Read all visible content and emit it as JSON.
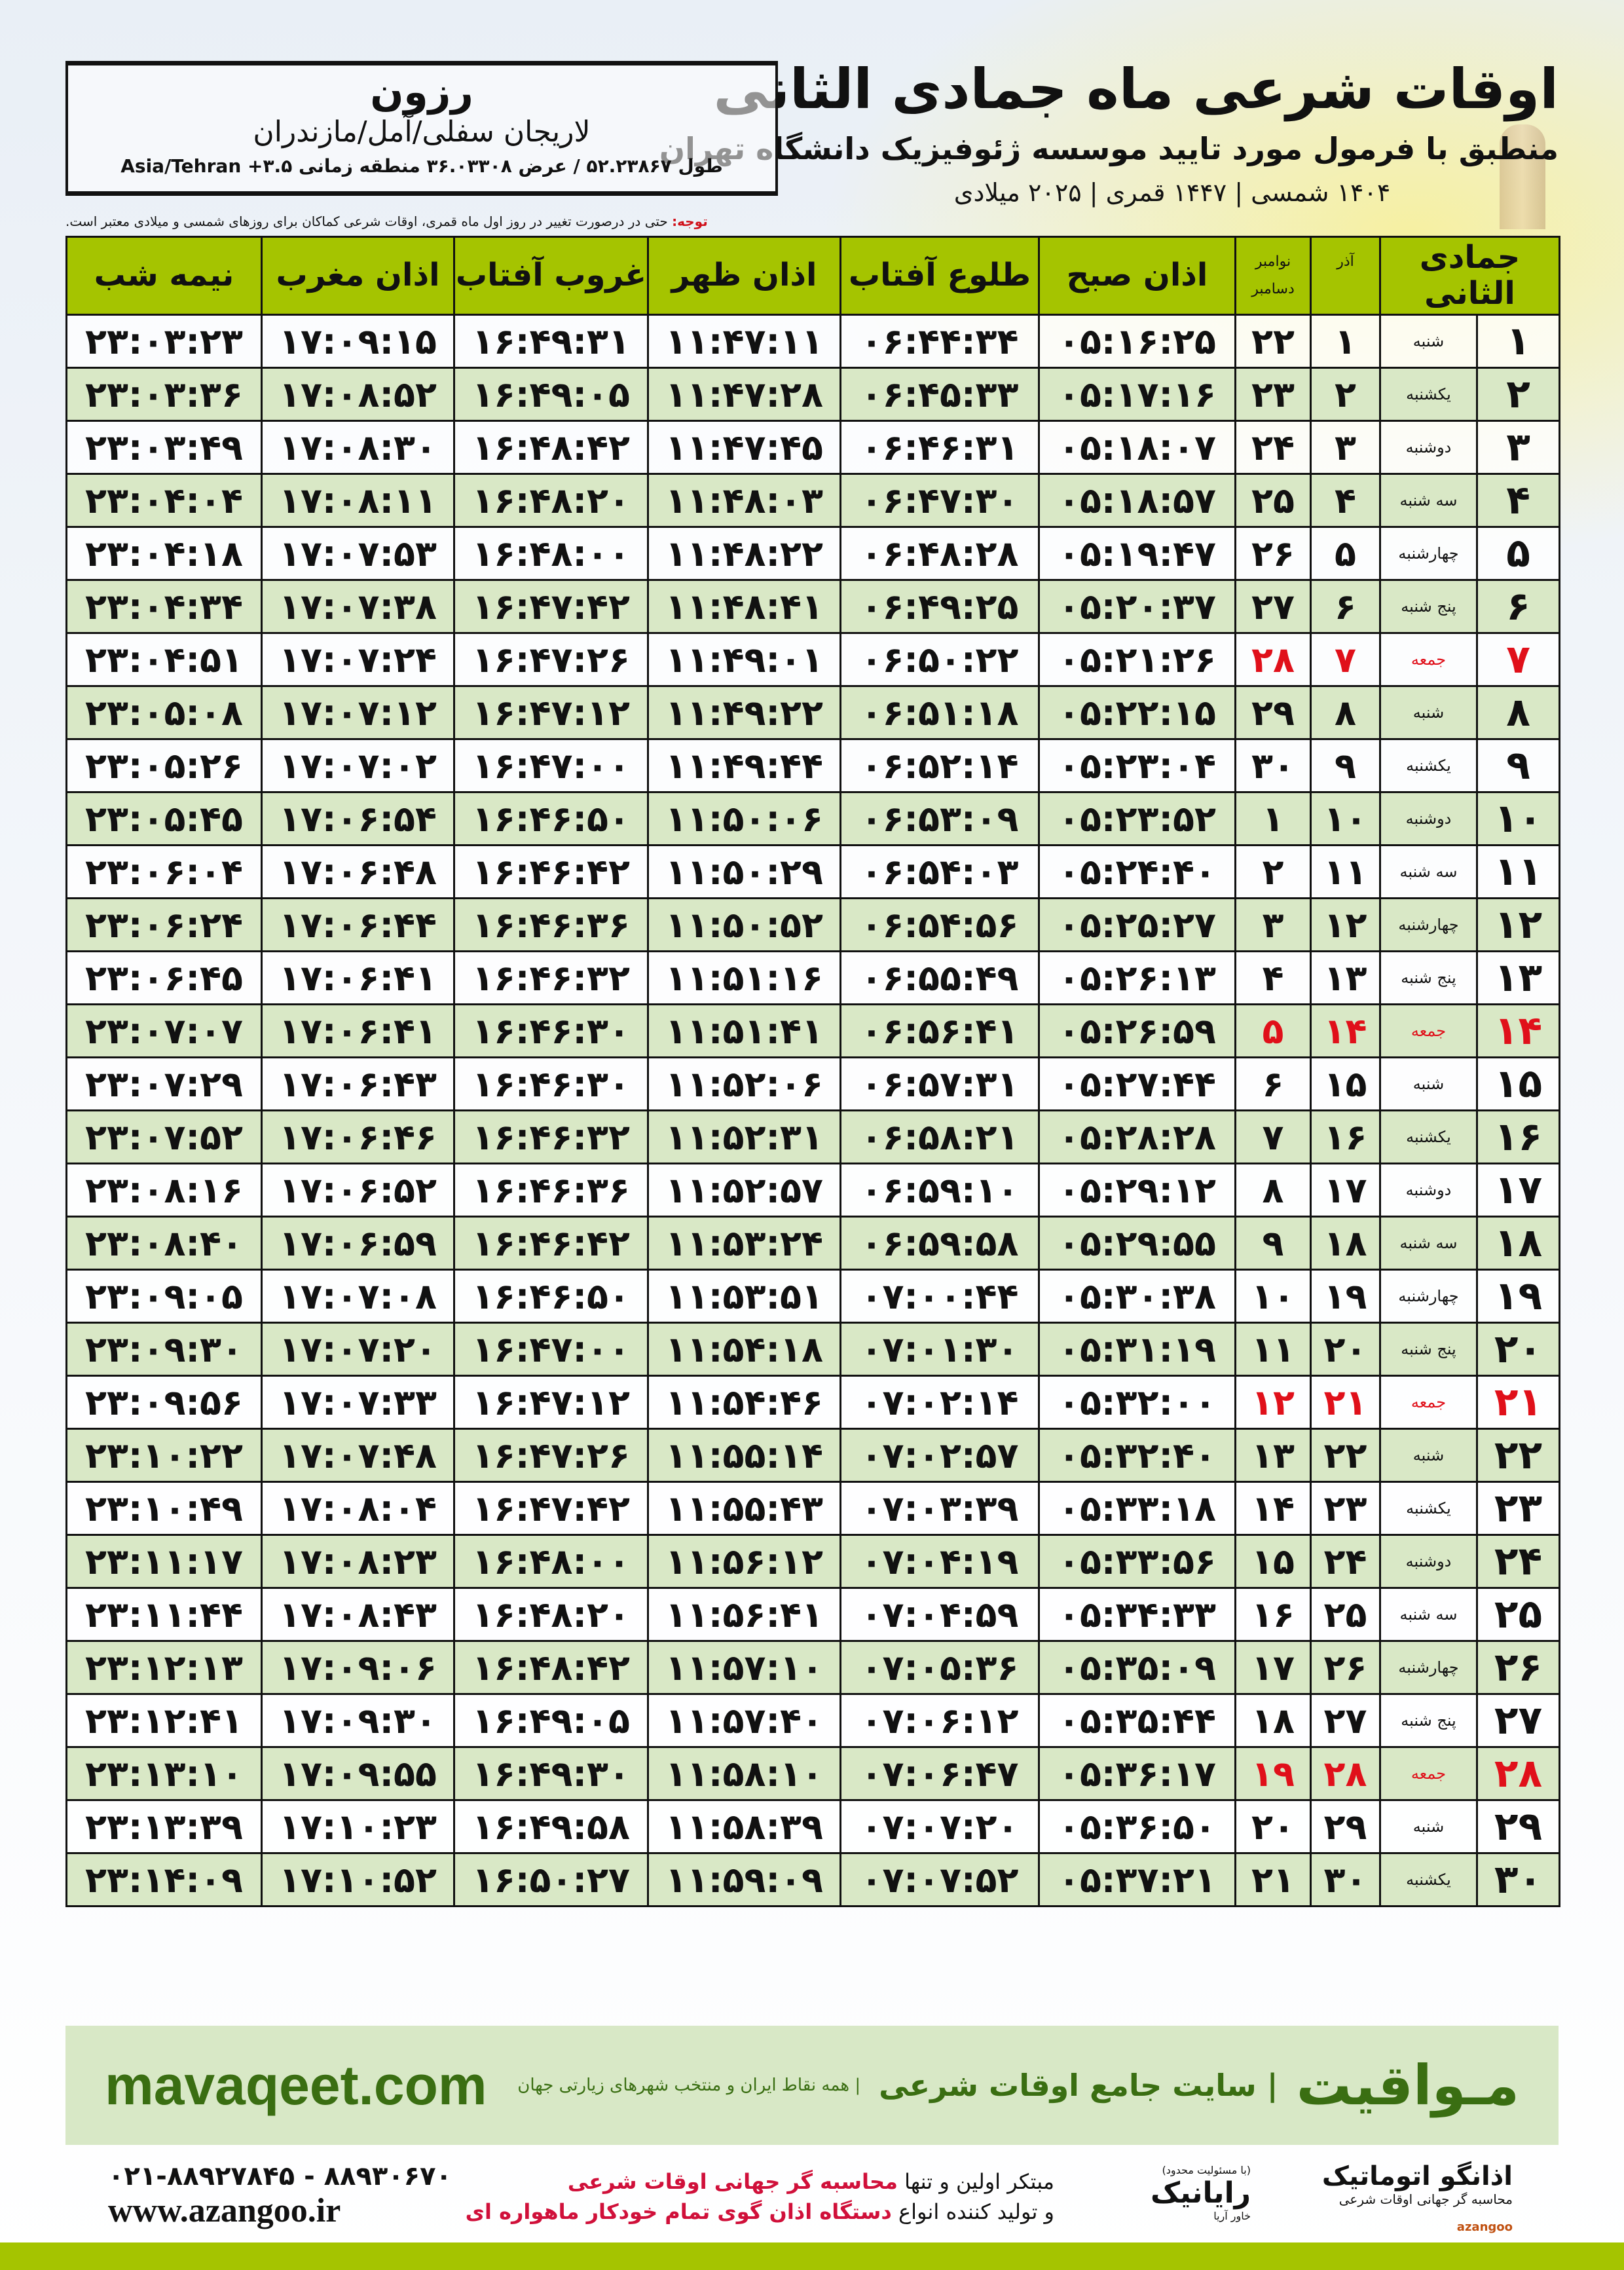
{
  "header": {
    "title": "اوقات شرعی ماه جمادی الثانی",
    "subtitle": "منطبق با فرمول مورد تایید موسسه ژئوفیزیک دانشگاه تهران",
    "years": "۱۴۰۴ شمسی | ۱۴۴۷ قمری | ۲۰۲۵ میلادی"
  },
  "location": {
    "city": "رزون",
    "region": "لاریجان سفلی/آمل/مازندران",
    "coords": "طول ۵۲.۲۳۸۶۷ / عرض ۳۶.۰۳۳۰۸ منطقه زمانی ۳.۵+ Asia/Tehran"
  },
  "note": {
    "label": "توجه:",
    "text": " حتی در درصورت تغییر در روز اول ماه قمری، اوقات شرعی کماکان برای روزهای شمسی و میلادی معتبر است."
  },
  "table": {
    "headers": {
      "month": "جمادی الثانی",
      "azar": "آذر",
      "nov": "نوامبر",
      "dec": "دسامبر",
      "fajr": "اذان صبح",
      "sunrise": "طلوع آفتاب",
      "dhuhr": "اذان ظهر",
      "sunset": "غروب آفتاب",
      "maghrib": "اذان مغرب",
      "midnight": "نیمه شب"
    },
    "rows": [
      {
        "day": "۱",
        "weekday": "شنبه",
        "azar": "۱",
        "greg": "۲۲",
        "fajr": "۰۵:۱۶:۲۵",
        "sunrise": "۰۶:۴۴:۳۴",
        "dhuhr": "۱۱:۴۷:۱۱",
        "sunset": "۱۶:۴۹:۳۱",
        "maghrib": "۱۷:۰۹:۱۵",
        "midnight": "۲۳:۰۳:۲۳",
        "friday": false
      },
      {
        "day": "۲",
        "weekday": "یکشنبه",
        "azar": "۲",
        "greg": "۲۳",
        "fajr": "۰۵:۱۷:۱۶",
        "sunrise": "۰۶:۴۵:۳۳",
        "dhuhr": "۱۱:۴۷:۲۸",
        "sunset": "۱۶:۴۹:۰۵",
        "maghrib": "۱۷:۰۸:۵۲",
        "midnight": "۲۳:۰۳:۳۶",
        "friday": false
      },
      {
        "day": "۳",
        "weekday": "دوشنبه",
        "azar": "۳",
        "greg": "۲۴",
        "fajr": "۰۵:۱۸:۰۷",
        "sunrise": "۰۶:۴۶:۳۱",
        "dhuhr": "۱۱:۴۷:۴۵",
        "sunset": "۱۶:۴۸:۴۲",
        "maghrib": "۱۷:۰۸:۳۰",
        "midnight": "۲۳:۰۳:۴۹",
        "friday": false
      },
      {
        "day": "۴",
        "weekday": "سه شنبه",
        "azar": "۴",
        "greg": "۲۵",
        "fajr": "۰۵:۱۸:۵۷",
        "sunrise": "۰۶:۴۷:۳۰",
        "dhuhr": "۱۱:۴۸:۰۳",
        "sunset": "۱۶:۴۸:۲۰",
        "maghrib": "۱۷:۰۸:۱۱",
        "midnight": "۲۳:۰۴:۰۴",
        "friday": false
      },
      {
        "day": "۵",
        "weekday": "چهارشنبه",
        "azar": "۵",
        "greg": "۲۶",
        "fajr": "۰۵:۱۹:۴۷",
        "sunrise": "۰۶:۴۸:۲۸",
        "dhuhr": "۱۱:۴۸:۲۲",
        "sunset": "۱۶:۴۸:۰۰",
        "maghrib": "۱۷:۰۷:۵۳",
        "midnight": "۲۳:۰۴:۱۸",
        "friday": false
      },
      {
        "day": "۶",
        "weekday": "پنج شنبه",
        "azar": "۶",
        "greg": "۲۷",
        "fajr": "۰۵:۲۰:۳۷",
        "sunrise": "۰۶:۴۹:۲۵",
        "dhuhr": "۱۱:۴۸:۴۱",
        "sunset": "۱۶:۴۷:۴۲",
        "maghrib": "۱۷:۰۷:۳۸",
        "midnight": "۲۳:۰۴:۳۴",
        "friday": false
      },
      {
        "day": "۷",
        "weekday": "جمعه",
        "azar": "۷",
        "greg": "۲۸",
        "fajr": "۰۵:۲۱:۲۶",
        "sunrise": "۰۶:۵۰:۲۲",
        "dhuhr": "۱۱:۴۹:۰۱",
        "sunset": "۱۶:۴۷:۲۶",
        "maghrib": "۱۷:۰۷:۲۴",
        "midnight": "۲۳:۰۴:۵۱",
        "friday": true
      },
      {
        "day": "۸",
        "weekday": "شنبه",
        "azar": "۸",
        "greg": "۲۹",
        "fajr": "۰۵:۲۲:۱۵",
        "sunrise": "۰۶:۵۱:۱۸",
        "dhuhr": "۱۱:۴۹:۲۲",
        "sunset": "۱۶:۴۷:۱۲",
        "maghrib": "۱۷:۰۷:۱۲",
        "midnight": "۲۳:۰۵:۰۸",
        "friday": false
      },
      {
        "day": "۹",
        "weekday": "یکشنبه",
        "azar": "۹",
        "greg": "۳۰",
        "fajr": "۰۵:۲۳:۰۴",
        "sunrise": "۰۶:۵۲:۱۴",
        "dhuhr": "۱۱:۴۹:۴۴",
        "sunset": "۱۶:۴۷:۰۰",
        "maghrib": "۱۷:۰۷:۰۲",
        "midnight": "۲۳:۰۵:۲۶",
        "friday": false
      },
      {
        "day": "۱۰",
        "weekday": "دوشنبه",
        "azar": "۱۰",
        "greg": "۱",
        "fajr": "۰۵:۲۳:۵۲",
        "sunrise": "۰۶:۵۳:۰۹",
        "dhuhr": "۱۱:۵۰:۰۶",
        "sunset": "۱۶:۴۶:۵۰",
        "maghrib": "۱۷:۰۶:۵۴",
        "midnight": "۲۳:۰۵:۴۵",
        "friday": false
      },
      {
        "day": "۱۱",
        "weekday": "سه شنبه",
        "azar": "۱۱",
        "greg": "۲",
        "fajr": "۰۵:۲۴:۴۰",
        "sunrise": "۰۶:۵۴:۰۳",
        "dhuhr": "۱۱:۵۰:۲۹",
        "sunset": "۱۶:۴۶:۴۲",
        "maghrib": "۱۷:۰۶:۴۸",
        "midnight": "۲۳:۰۶:۰۴",
        "friday": false
      },
      {
        "day": "۱۲",
        "weekday": "چهارشنبه",
        "azar": "۱۲",
        "greg": "۳",
        "fajr": "۰۵:۲۵:۲۷",
        "sunrise": "۰۶:۵۴:۵۶",
        "dhuhr": "۱۱:۵۰:۵۲",
        "sunset": "۱۶:۴۶:۳۶",
        "maghrib": "۱۷:۰۶:۴۴",
        "midnight": "۲۳:۰۶:۲۴",
        "friday": false
      },
      {
        "day": "۱۳",
        "weekday": "پنج شنبه",
        "azar": "۱۳",
        "greg": "۴",
        "fajr": "۰۵:۲۶:۱۳",
        "sunrise": "۰۶:۵۵:۴۹",
        "dhuhr": "۱۱:۵۱:۱۶",
        "sunset": "۱۶:۴۶:۳۲",
        "maghrib": "۱۷:۰۶:۴۱",
        "midnight": "۲۳:۰۶:۴۵",
        "friday": false
      },
      {
        "day": "۱۴",
        "weekday": "جمعه",
        "azar": "۱۴",
        "greg": "۵",
        "fajr": "۰۵:۲۶:۵۹",
        "sunrise": "۰۶:۵۶:۴۱",
        "dhuhr": "۱۱:۵۱:۴۱",
        "sunset": "۱۶:۴۶:۳۰",
        "maghrib": "۱۷:۰۶:۴۱",
        "midnight": "۲۳:۰۷:۰۷",
        "friday": true
      },
      {
        "day": "۱۵",
        "weekday": "شنبه",
        "azar": "۱۵",
        "greg": "۶",
        "fajr": "۰۵:۲۷:۴۴",
        "sunrise": "۰۶:۵۷:۳۱",
        "dhuhr": "۱۱:۵۲:۰۶",
        "sunset": "۱۶:۴۶:۳۰",
        "maghrib": "۱۷:۰۶:۴۳",
        "midnight": "۲۳:۰۷:۲۹",
        "friday": false
      },
      {
        "day": "۱۶",
        "weekday": "یکشنبه",
        "azar": "۱۶",
        "greg": "۷",
        "fajr": "۰۵:۲۸:۲۸",
        "sunrise": "۰۶:۵۸:۲۱",
        "dhuhr": "۱۱:۵۲:۳۱",
        "sunset": "۱۶:۴۶:۳۲",
        "maghrib": "۱۷:۰۶:۴۶",
        "midnight": "۲۳:۰۷:۵۲",
        "friday": false
      },
      {
        "day": "۱۷",
        "weekday": "دوشنبه",
        "azar": "۱۷",
        "greg": "۸",
        "fajr": "۰۵:۲۹:۱۲",
        "sunrise": "۰۶:۵۹:۱۰",
        "dhuhr": "۱۱:۵۲:۵۷",
        "sunset": "۱۶:۴۶:۳۶",
        "maghrib": "۱۷:۰۶:۵۲",
        "midnight": "۲۳:۰۸:۱۶",
        "friday": false
      },
      {
        "day": "۱۸",
        "weekday": "سه شنبه",
        "azar": "۱۸",
        "greg": "۹",
        "fajr": "۰۵:۲۹:۵۵",
        "sunrise": "۰۶:۵۹:۵۸",
        "dhuhr": "۱۱:۵۳:۲۴",
        "sunset": "۱۶:۴۶:۴۲",
        "maghrib": "۱۷:۰۶:۵۹",
        "midnight": "۲۳:۰۸:۴۰",
        "friday": false
      },
      {
        "day": "۱۹",
        "weekday": "چهارشنبه",
        "azar": "۱۹",
        "greg": "۱۰",
        "fajr": "۰۵:۳۰:۳۸",
        "sunrise": "۰۷:۰۰:۴۴",
        "dhuhr": "۱۱:۵۳:۵۱",
        "sunset": "۱۶:۴۶:۵۰",
        "maghrib": "۱۷:۰۷:۰۸",
        "midnight": "۲۳:۰۹:۰۵",
        "friday": false
      },
      {
        "day": "۲۰",
        "weekday": "پنج شنبه",
        "azar": "۲۰",
        "greg": "۱۱",
        "fajr": "۰۵:۳۱:۱۹",
        "sunrise": "۰۷:۰۱:۳۰",
        "dhuhr": "۱۱:۵۴:۱۸",
        "sunset": "۱۶:۴۷:۰۰",
        "maghrib": "۱۷:۰۷:۲۰",
        "midnight": "۲۳:۰۹:۳۰",
        "friday": false
      },
      {
        "day": "۲۱",
        "weekday": "جمعه",
        "azar": "۲۱",
        "greg": "۱۲",
        "fajr": "۰۵:۳۲:۰۰",
        "sunrise": "۰۷:۰۲:۱۴",
        "dhuhr": "۱۱:۵۴:۴۶",
        "sunset": "۱۶:۴۷:۱۲",
        "maghrib": "۱۷:۰۷:۳۳",
        "midnight": "۲۳:۰۹:۵۶",
        "friday": true
      },
      {
        "day": "۲۲",
        "weekday": "شنبه",
        "azar": "۲۲",
        "greg": "۱۳",
        "fajr": "۰۵:۳۲:۴۰",
        "sunrise": "۰۷:۰۲:۵۷",
        "dhuhr": "۱۱:۵۵:۱۴",
        "sunset": "۱۶:۴۷:۲۶",
        "maghrib": "۱۷:۰۷:۴۸",
        "midnight": "۲۳:۱۰:۲۲",
        "friday": false
      },
      {
        "day": "۲۳",
        "weekday": "یکشنبه",
        "azar": "۲۳",
        "greg": "۱۴",
        "fajr": "۰۵:۳۳:۱۸",
        "sunrise": "۰۷:۰۳:۳۹",
        "dhuhr": "۱۱:۵۵:۴۳",
        "sunset": "۱۶:۴۷:۴۲",
        "maghrib": "۱۷:۰۸:۰۴",
        "midnight": "۲۳:۱۰:۴۹",
        "friday": false
      },
      {
        "day": "۲۴",
        "weekday": "دوشنبه",
        "azar": "۲۴",
        "greg": "۱۵",
        "fajr": "۰۵:۳۳:۵۶",
        "sunrise": "۰۷:۰۴:۱۹",
        "dhuhr": "۱۱:۵۶:۱۲",
        "sunset": "۱۶:۴۸:۰۰",
        "maghrib": "۱۷:۰۸:۲۳",
        "midnight": "۲۳:۱۱:۱۷",
        "friday": false
      },
      {
        "day": "۲۵",
        "weekday": "سه شنبه",
        "azar": "۲۵",
        "greg": "۱۶",
        "fajr": "۰۵:۳۴:۳۳",
        "sunrise": "۰۷:۰۴:۵۹",
        "dhuhr": "۱۱:۵۶:۴۱",
        "sunset": "۱۶:۴۸:۲۰",
        "maghrib": "۱۷:۰۸:۴۳",
        "midnight": "۲۳:۱۱:۴۴",
        "friday": false
      },
      {
        "day": "۲۶",
        "weekday": "چهارشنبه",
        "azar": "۲۶",
        "greg": "۱۷",
        "fajr": "۰۵:۳۵:۰۹",
        "sunrise": "۰۷:۰۵:۳۶",
        "dhuhr": "۱۱:۵۷:۱۰",
        "sunset": "۱۶:۴۸:۴۲",
        "maghrib": "۱۷:۰۹:۰۶",
        "midnight": "۲۳:۱۲:۱۳",
        "friday": false
      },
      {
        "day": "۲۷",
        "weekday": "پنج شنبه",
        "azar": "۲۷",
        "greg": "۱۸",
        "fajr": "۰۵:۳۵:۴۴",
        "sunrise": "۰۷:۰۶:۱۲",
        "dhuhr": "۱۱:۵۷:۴۰",
        "sunset": "۱۶:۴۹:۰۵",
        "maghrib": "۱۷:۰۹:۳۰",
        "midnight": "۲۳:۱۲:۴۱",
        "friday": false
      },
      {
        "day": "۲۸",
        "weekday": "جمعه",
        "azar": "۲۸",
        "greg": "۱۹",
        "fajr": "۰۵:۳۶:۱۷",
        "sunrise": "۰۷:۰۶:۴۷",
        "dhuhr": "۱۱:۵۸:۱۰",
        "sunset": "۱۶:۴۹:۳۰",
        "maghrib": "۱۷:۰۹:۵۵",
        "midnight": "۲۳:۱۳:۱۰",
        "friday": true
      },
      {
        "day": "۲۹",
        "weekday": "شنبه",
        "azar": "۲۹",
        "greg": "۲۰",
        "fajr": "۰۵:۳۶:۵۰",
        "sunrise": "۰۷:۰۷:۲۰",
        "dhuhr": "۱۱:۵۸:۳۹",
        "sunset": "۱۶:۴۹:۵۸",
        "maghrib": "۱۷:۱۰:۲۳",
        "midnight": "۲۳:۱۳:۳۹",
        "friday": false
      },
      {
        "day": "۳۰",
        "weekday": "یکشنبه",
        "azar": "۳۰",
        "greg": "۲۱",
        "fajr": "۰۵:۳۷:۲۱",
        "sunrise": "۰۷:۰۷:۵۲",
        "dhuhr": "۱۱:۵۹:۰۹",
        "sunset": "۱۶:۵۰:۲۷",
        "maghrib": "۱۷:۱۰:۵۲",
        "midnight": "۲۳:۱۴:۰۹",
        "friday": false
      }
    ]
  },
  "banner": {
    "brand": "مـواقیت",
    "tagline": "| سایت جامع اوقات شرعی",
    "tagline2": "| همه نقاط ایران و منتخب شهرهای زیارتی جهان",
    "site": "mavaqeet.com"
  },
  "footer": {
    "logo1_name": "اذانگو اتوماتیک",
    "logo1_sub": "محاسبه گر جهانی اوقات شرعی",
    "logo1_latin": "azangoo",
    "logo2_name": "رایانیک",
    "logo2_side": "خاور آریا",
    "logo2_sub": "(با مسئولیت محدود)",
    "promo_line1_a": "مبتکر اولین و تنها ",
    "promo_line1_b": "محاسبه گر جهانی اوقات شرعی",
    "promo_line2_a": "و تولید کننده انواع ",
    "promo_line2_b": "دستگاه اذان گوی تمام خودکار ماهواره ای",
    "phone": "۰۲۱-۸۸۹۲۷۸۴۵ - ۸۸۹۳۰۶۷۰",
    "website": "www.azangoo.ir"
  },
  "colors": {
    "header_green": "#a5c400",
    "row_green": "#d9e8c6",
    "friday_red": "#e0101a",
    "brand_green": "#3a6e12"
  }
}
